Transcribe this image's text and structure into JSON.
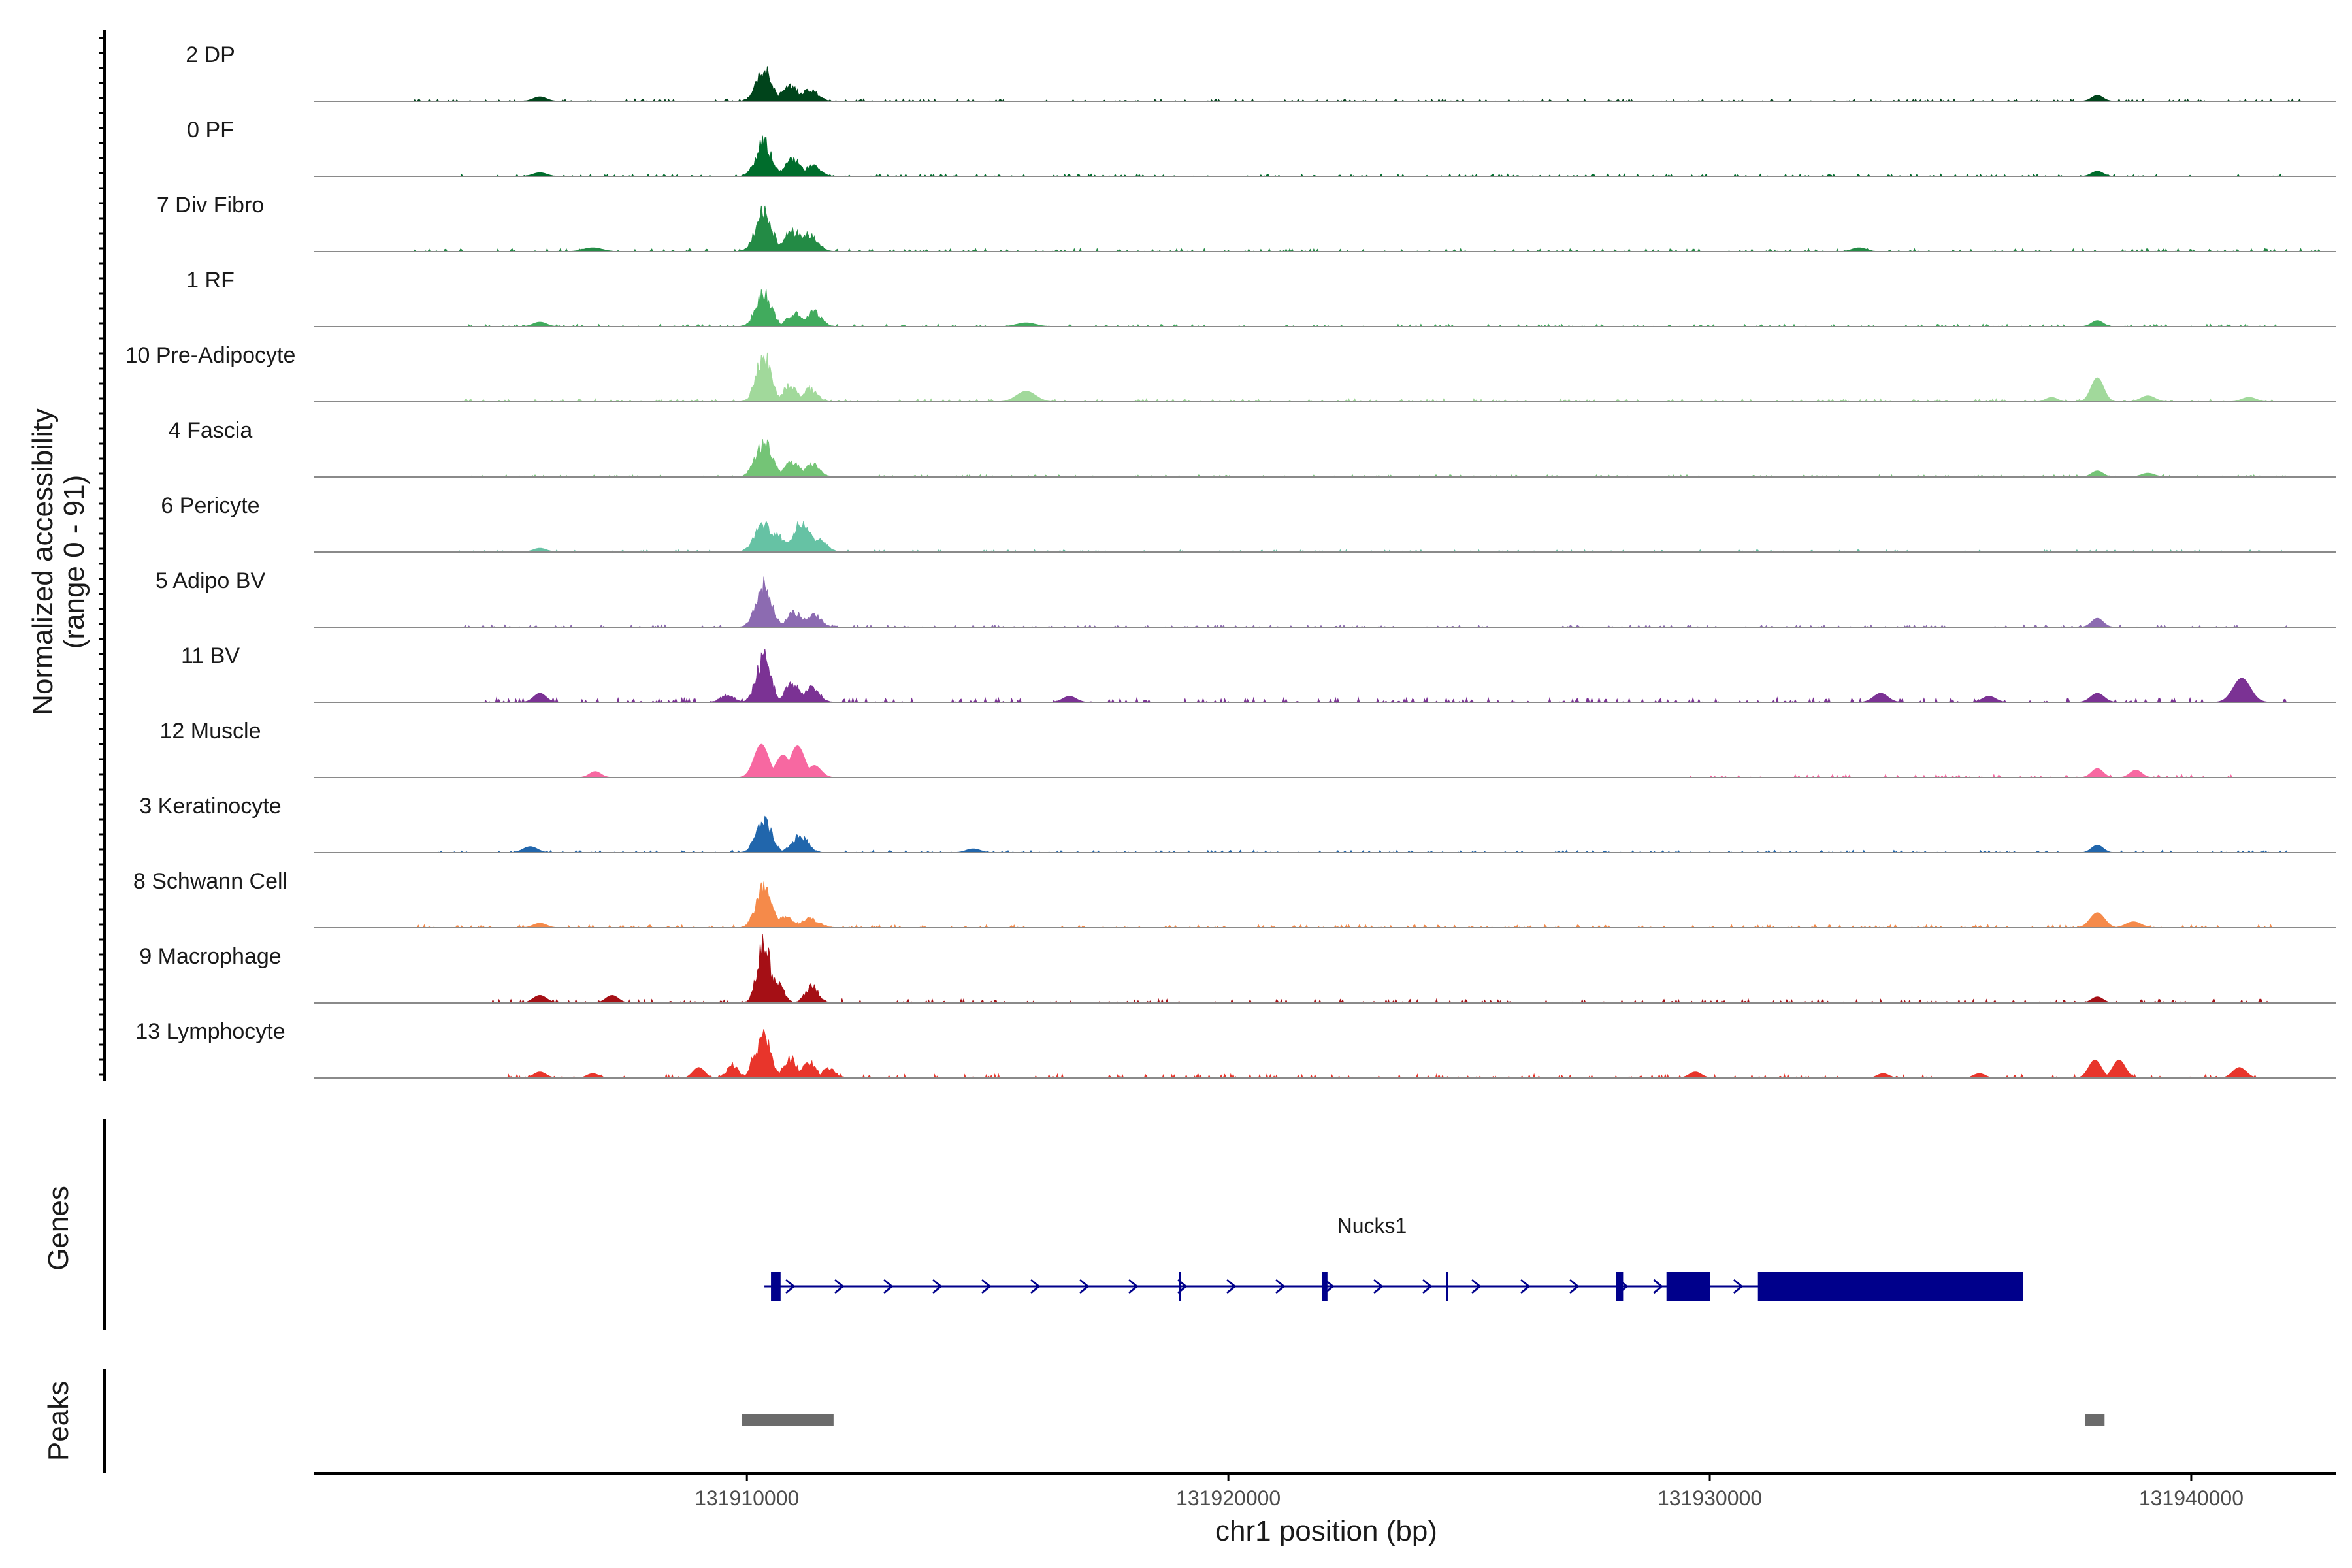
{
  "chart_data": {
    "type": "area",
    "coverage": {
      "ylabel_line1": "Normalized accessibility",
      "ylabel_line2": "(range 0 - 91)",
      "y_range": [
        0,
        91
      ],
      "x_range": [
        131901000,
        131943000
      ],
      "baseline_color": "#8a8a8a",
      "peak_positions_bp": [
        131905750,
        131910350,
        131911000,
        131911350,
        131915800,
        131933500,
        131938050,
        131941100
      ],
      "tracks": [
        {
          "name": "2 DP",
          "color": "#00441b",
          "peaks": [
            [
              131910350,
              45,
              160
            ],
            [
              131910900,
              20,
              180
            ],
            [
              131911300,
              16,
              170
            ],
            [
              131938050,
              8,
              120
            ],
            [
              131905700,
              6,
              140
            ]
          ],
          "noise": 3,
          "noise_start": 131903000,
          "noise_end": 131942500
        },
        {
          "name": "0 PF",
          "color": "#006d2c",
          "peaks": [
            [
              131910350,
              46,
              160
            ],
            [
              131910950,
              22,
              170
            ],
            [
              131911350,
              14,
              160
            ],
            [
              131938050,
              7,
              120
            ],
            [
              131905700,
              5,
              140
            ]
          ],
          "noise": 3,
          "noise_start": 131904000,
          "noise_end": 131942000
        },
        {
          "name": "7 Div Fibro",
          "color": "#238b45",
          "peaks": [
            [
              131910350,
              54,
              170
            ],
            [
              131910950,
              28,
              190
            ],
            [
              131911300,
              24,
              170
            ],
            [
              131906800,
              5,
              200
            ],
            [
              131933100,
              5,
              150
            ]
          ],
          "noise": 4,
          "noise_start": 131903000,
          "noise_end": 131942800
        },
        {
          "name": "1 RF",
          "color": "#41ab5d",
          "peaks": [
            [
              131910350,
              44,
              160
            ],
            [
              131911000,
              18,
              160
            ],
            [
              131911400,
              20,
              150
            ],
            [
              131938050,
              8,
              120
            ],
            [
              131905700,
              6,
              140
            ],
            [
              131915800,
              5,
              200
            ]
          ],
          "noise": 3,
          "noise_start": 131904000,
          "noise_end": 131942000
        },
        {
          "name": "10 Pre-Adipocyte",
          "color": "#a1d99b",
          "peaks": [
            [
              131910350,
              62,
              150
            ],
            [
              131910900,
              22,
              150
            ],
            [
              131911300,
              18,
              150
            ],
            [
              131938050,
              32,
              130
            ],
            [
              131915800,
              14,
              200
            ],
            [
              131939100,
              8,
              150
            ],
            [
              131941200,
              6,
              150
            ],
            [
              131937100,
              6,
              120
            ]
          ],
          "noise": 4,
          "noise_start": 131904000,
          "noise_end": 131942000
        },
        {
          "name": "4 Fascia",
          "color": "#74c476",
          "peaks": [
            [
              131910350,
              48,
              170
            ],
            [
              131910950,
              20,
              170
            ],
            [
              131911350,
              17,
              160
            ],
            [
              131938050,
              8,
              120
            ],
            [
              131939100,
              5,
              140
            ]
          ],
          "noise": 3,
          "noise_start": 131904000,
          "noise_end": 131942000
        },
        {
          "name": "6 Pericyte",
          "color": "#66c2a4",
          "peaks": [
            [
              131910350,
              40,
              180
            ],
            [
              131910600,
              22,
              200
            ],
            [
              131911150,
              38,
              200
            ],
            [
              131911450,
              18,
              180
            ],
            [
              131905700,
              5,
              140
            ]
          ],
          "noise": 3,
          "noise_start": 131904000,
          "noise_end": 131942000
        },
        {
          "name": "5 Adipo BV",
          "color": "#8c6bb1",
          "peaks": [
            [
              131910350,
              56,
              160
            ],
            [
              131911000,
              20,
              170
            ],
            [
              131911400,
              16,
              150
            ],
            [
              131938050,
              12,
              120
            ]
          ],
          "noise": 3,
          "noise_start": 131904000,
          "noise_end": 131942000
        },
        {
          "name": "11 BV",
          "color": "#7b3294",
          "peaks": [
            [
              131910350,
              60,
              150
            ],
            [
              131910950,
              24,
              160
            ],
            [
              131911350,
              22,
              150
            ],
            [
              131941050,
              32,
              180
            ],
            [
              131933550,
              12,
              150
            ],
            [
              131905700,
              12,
              130
            ],
            [
              131909600,
              10,
              140
            ],
            [
              131938050,
              12,
              140
            ],
            [
              131916700,
              8,
              140
            ],
            [
              131935800,
              8,
              140
            ]
          ],
          "noise": 6,
          "noise_start": 131904500,
          "noise_end": 131942000
        },
        {
          "name": "12 Muscle",
          "color": "#f768a1",
          "peaks": [
            [
              131910300,
              44,
              150
            ],
            [
              131910750,
              30,
              150
            ],
            [
              131911050,
              42,
              150
            ],
            [
              131911400,
              16,
              140
            ],
            [
              131906850,
              8,
              120
            ],
            [
              131938050,
              12,
              120
            ],
            [
              131938850,
              10,
              120
            ]
          ],
          "noise": 4,
          "noise_start": 131929500,
          "noise_end": 131941000
        },
        {
          "name": "3 Keratinocyte",
          "color": "#2166ac",
          "peaks": [
            [
              131910350,
              42,
              160
            ],
            [
              131911100,
              22,
              170
            ],
            [
              131905500,
              8,
              150
            ],
            [
              131938050,
              10,
              120
            ],
            [
              131914700,
              5,
              150
            ]
          ],
          "noise": 3,
          "noise_start": 131903500,
          "noise_end": 131942000
        },
        {
          "name": "8 Schwann Cell",
          "color": "#f58a4a",
          "peaks": [
            [
              131910350,
              54,
              160
            ],
            [
              131910800,
              14,
              200
            ],
            [
              131911300,
              12,
              200
            ],
            [
              131938050,
              20,
              150
            ],
            [
              131938800,
              8,
              160
            ],
            [
              131905700,
              6,
              140
            ]
          ],
          "noise": 4,
          "noise_start": 131903000,
          "noise_end": 131942000
        },
        {
          "name": "9 Macrophage",
          "color": "#a50f15",
          "peaks": [
            [
              131910350,
              86,
              130
            ],
            [
              131910600,
              30,
              140
            ],
            [
              131911350,
              22,
              140
            ],
            [
              131905700,
              10,
              140
            ],
            [
              131907200,
              10,
              130
            ],
            [
              131938050,
              8,
              120
            ]
          ],
          "noise": 5,
          "noise_start": 131904500,
          "noise_end": 131942000
        },
        {
          "name": "13 Lymphocyte",
          "color": "#e8352b",
          "peaks": [
            [
              131910350,
              58,
              150
            ],
            [
              131910200,
              36,
              110
            ],
            [
              131909700,
              18,
              120
            ],
            [
              131909000,
              14,
              120
            ],
            [
              131910900,
              28,
              130
            ],
            [
              131911300,
              22,
              130
            ],
            [
              131911700,
              12,
              140
            ],
            [
              131938000,
              24,
              130
            ],
            [
              131938500,
              24,
              130
            ],
            [
              131941000,
              14,
              140
            ],
            [
              131905700,
              8,
              130
            ],
            [
              131906800,
              6,
              120
            ],
            [
              131929700,
              8,
              130
            ],
            [
              131933600,
              6,
              120
            ],
            [
              131935600,
              6,
              120
            ]
          ],
          "noise": 5,
          "noise_start": 131905000,
          "noise_end": 131941500
        }
      ]
    },
    "genes": {
      "panel_label": "Genes",
      "gene_name": "Nucks1",
      "strand": "+",
      "color": "#00008b",
      "start": 131910500,
      "end": 131936500,
      "exons": [
        [
          131910500,
          131910700,
          "thick"
        ],
        [
          131919000,
          131919050,
          "thin"
        ],
        [
          131921950,
          131922050,
          "thick"
        ],
        [
          131924550,
          131924600,
          "thin"
        ],
        [
          131928050,
          131928200,
          "thick"
        ],
        [
          131929100,
          131930000,
          "thick"
        ],
        [
          131931000,
          131936500,
          "thick"
        ]
      ]
    },
    "peaks": {
      "panel_label": "Peaks",
      "color": "#6b6b6b",
      "intervals": [
        [
          131909900,
          131911800
        ],
        [
          131937800,
          131938200
        ]
      ]
    },
    "x_axis": {
      "title": "chr1 position (bp)",
      "ticks": [
        131910000,
        131920000,
        131930000,
        131940000
      ],
      "tick_labels": [
        "131910000",
        "131920000",
        "131930000",
        "131940000"
      ]
    }
  }
}
